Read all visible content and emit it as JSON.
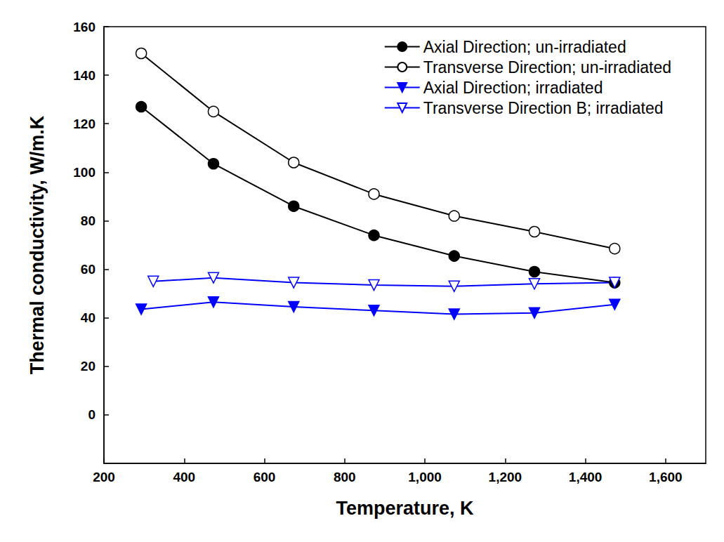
{
  "chart_data": {
    "type": "line",
    "x_label": "Temperature, K",
    "y_label": "Thermal conductivity, W/m.K",
    "xlim": [
      200,
      1700
    ],
    "xticks": [
      200,
      400,
      600,
      800,
      1000,
      1200,
      1400,
      1600
    ],
    "ylim": [
      -20,
      160
    ],
    "yticks": [
      0,
      20,
      40,
      60,
      80,
      100,
      120,
      140,
      160
    ],
    "grid": false,
    "legend": "upper right",
    "series": [
      {
        "name": "Axial Direction; un-irradiated",
        "color": "#000000",
        "marker": "circle",
        "line_style": "solid",
        "x": [
          293,
          473,
          673,
          873,
          1073,
          1273,
          1473
        ],
        "values": [
          127,
          103.5,
          86,
          74,
          65.5,
          59,
          54.5
        ]
      },
      {
        "name": "Transverse Direction; un-irradiated",
        "color": "#000000",
        "marker": "circle-open",
        "line_style": "solid",
        "x": [
          293,
          473,
          673,
          873,
          1073,
          1273,
          1473
        ],
        "values": [
          149,
          125,
          104,
          91,
          82,
          75.5,
          68.5
        ]
      },
      {
        "name": "Axial Direction; irradiated",
        "color": "#0000ff",
        "marker": "triangle-down",
        "line_style": "solid",
        "x": [
          293,
          473,
          673,
          873,
          1073,
          1273,
          1473
        ],
        "values": [
          43.5,
          46.5,
          44.5,
          43,
          41.5,
          42,
          45.5
        ]
      },
      {
        "name": "Transverse Direction B; irradiated",
        "color": "#0000ff",
        "marker": "triangle-down-open",
        "line_style": "solid",
        "x": [
          323,
          473,
          673,
          873,
          1073,
          1273,
          1473
        ],
        "values": [
          55,
          56.5,
          54.5,
          53.5,
          53,
          54,
          54.5
        ]
      }
    ]
  }
}
